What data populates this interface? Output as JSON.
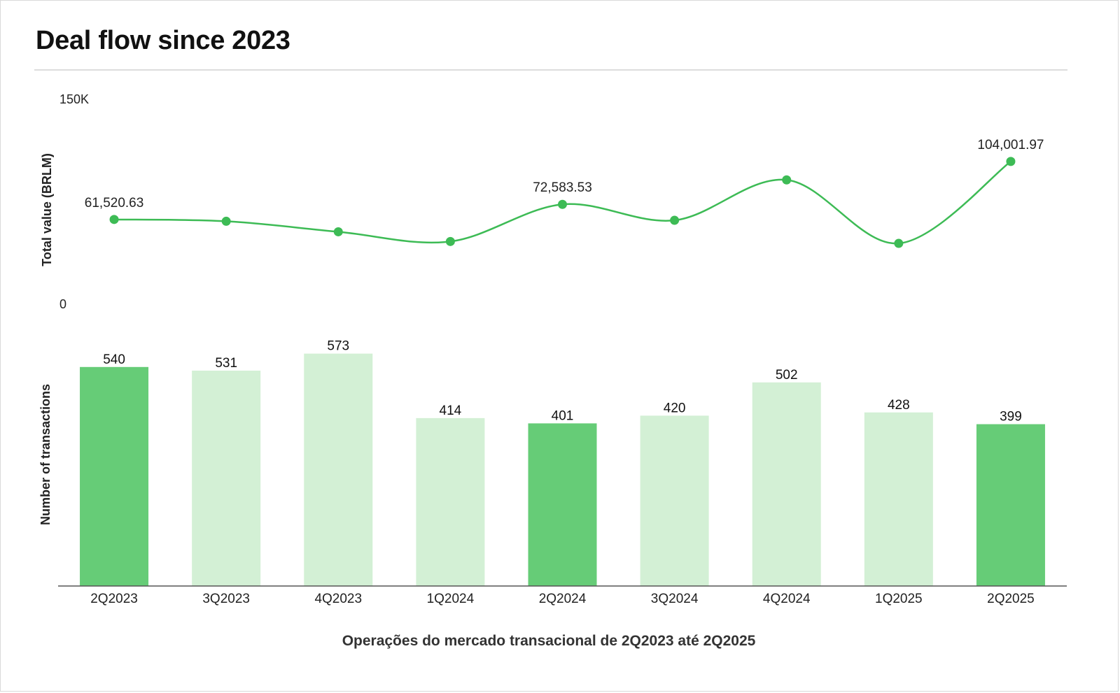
{
  "title": "Deal flow since 2023",
  "colors": {
    "line": "#3dbb55",
    "bar_dark": "#66cc77",
    "bar_light": "#d3f0d5",
    "axis": "#555555"
  },
  "chart_data": {
    "type": "bar+line",
    "categories": [
      "2Q2023",
      "3Q2023",
      "4Q2023",
      "1Q2024",
      "2Q2024",
      "3Q2024",
      "4Q2024",
      "1Q2025",
      "2Q2025"
    ],
    "line": {
      "ylabel": "Total value (BRLM)",
      "ylim": [
        0,
        150000
      ],
      "ytick_labels": [
        "150K",
        "0"
      ],
      "values": [
        61520.63,
        60200,
        52500,
        45400,
        72583.53,
        60900,
        90500,
        44000,
        104001.97
      ],
      "labels": [
        "61,520.63",
        "",
        "",
        "",
        "72,583.53",
        "",
        "",
        "",
        "104,001.97"
      ]
    },
    "bars": {
      "ylabel": "Number of transactions",
      "values": [
        540,
        531,
        573,
        414,
        401,
        420,
        502,
        428,
        399
      ],
      "labels": [
        "540",
        "531",
        "573",
        "414",
        "401",
        "420",
        "502",
        "428",
        "399"
      ],
      "highlight": [
        true,
        false,
        false,
        false,
        true,
        false,
        false,
        false,
        true
      ]
    },
    "caption": "Operações do mercado transacional de 2Q2023 até 2Q2025",
    "grid": false,
    "legend": "none"
  }
}
